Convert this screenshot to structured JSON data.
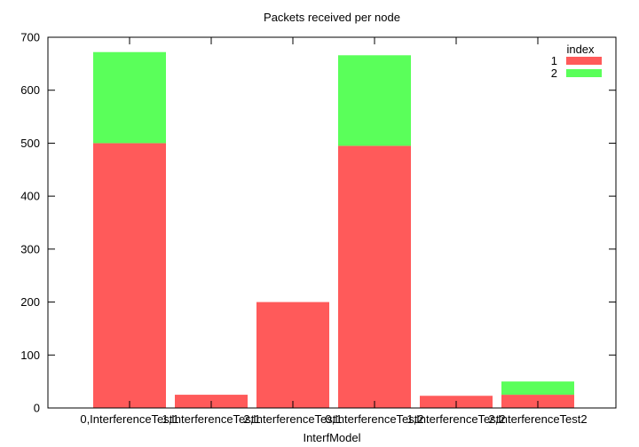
{
  "chart_data": {
    "type": "bar",
    "stacked": true,
    "title": "Packets received per node",
    "xlabel": "InterfModel",
    "ylabel": "",
    "ylim": [
      0,
      700
    ],
    "yticks": [
      0,
      100,
      200,
      300,
      400,
      500,
      600,
      700
    ],
    "grid": false,
    "legend": {
      "title": "index",
      "position": "top-right"
    },
    "categories": [
      "0,InterferenceTest1",
      "1,InterferenceTest1",
      "2,InterferenceTest1",
      "0,InterferenceTest2",
      "1,InterferenceTest2",
      "2,InterferenceTest2"
    ],
    "series": [
      {
        "name": "1",
        "color": "#ff5a5a",
        "values": [
          500,
          25,
          200,
          495,
          23,
          25
        ]
      },
      {
        "name": "2",
        "color": "#5aff5a",
        "values": [
          172,
          0,
          0,
          171,
          0,
          25
        ]
      }
    ]
  }
}
